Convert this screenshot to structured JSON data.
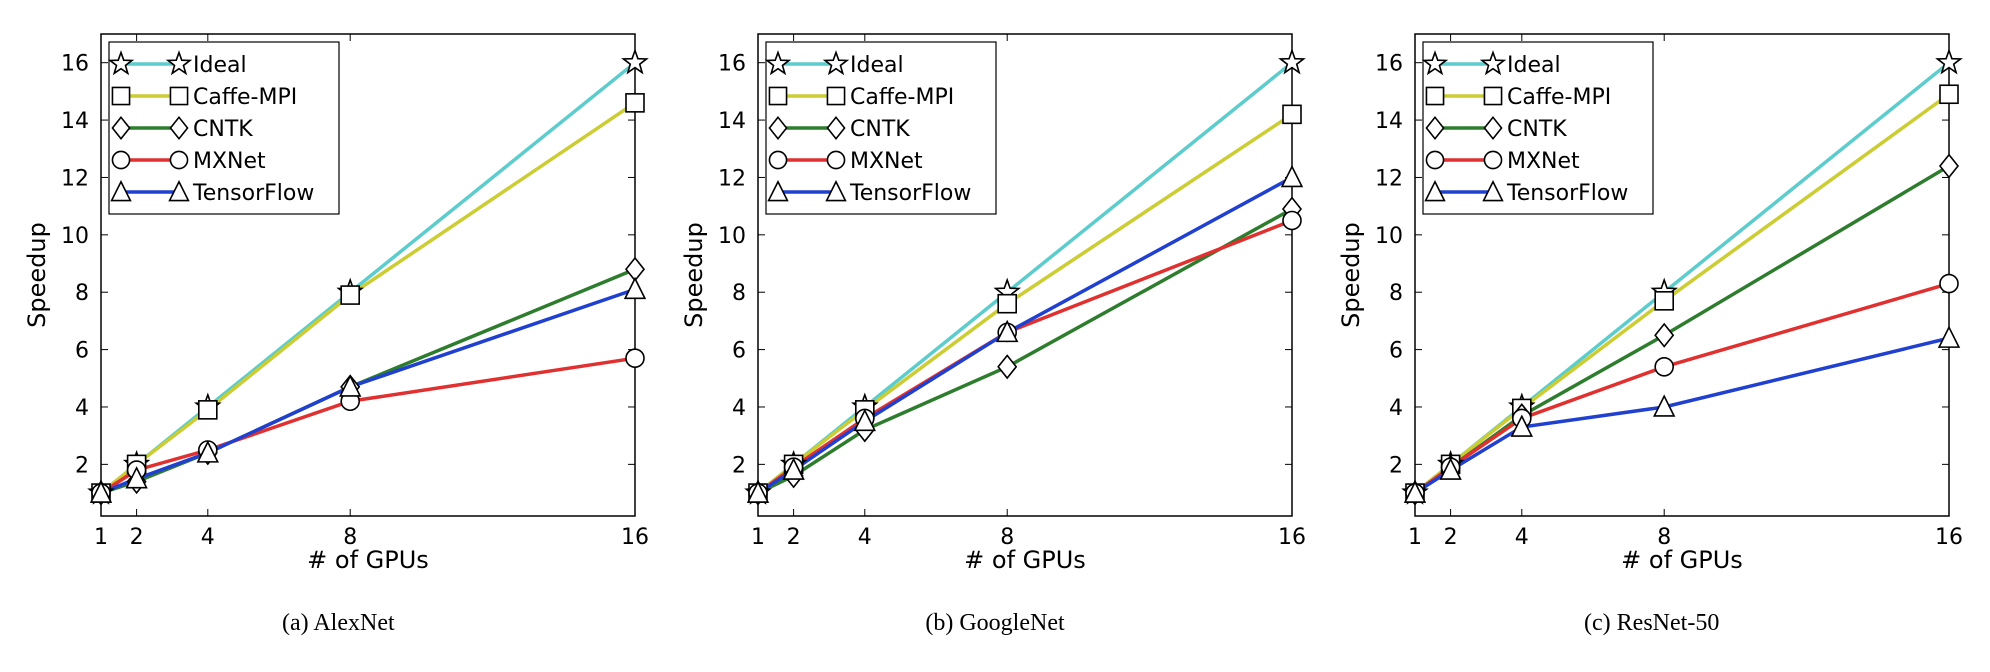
{
  "global": {
    "xlabel": "# of GPUs",
    "ylabel": "Speedup",
    "x_ticks": [
      1,
      2,
      4,
      8,
      16
    ],
    "y_ticks": [
      2,
      4,
      6,
      8,
      10,
      12,
      14,
      16
    ],
    "xlim": [
      1,
      16
    ],
    "ylim": [
      0.2,
      17
    ],
    "x_scale": "linear",
    "y_scale": "linear",
    "background_color": "#ffffff",
    "axis_color": "#000000",
    "line_width": 3.5,
    "marker_size": 9,
    "marker_edge_width": 1.6,
    "marker_face": "#ffffff",
    "tick_fontsize": 22,
    "label_fontsize": 24,
    "legend_fontsize": 22,
    "caption_fontsize": 24,
    "legend_pos": "upper-left"
  },
  "series_meta": [
    {
      "key": "Ideal",
      "label": "Ideal",
      "color": "#5ccccc",
      "marker": "star"
    },
    {
      "key": "Caffe-MPI",
      "label": "Caffe-MPI",
      "color": "#cccc33",
      "marker": "square"
    },
    {
      "key": "CNTK",
      "label": "CNTK",
      "color": "#2e7d2e",
      "marker": "diamond"
    },
    {
      "key": "MXNet",
      "label": "MXNet",
      "color": "#e03030",
      "marker": "circle"
    },
    {
      "key": "TensorFlow",
      "label": "TensorFlow",
      "color": "#2040d0",
      "marker": "triangle"
    }
  ],
  "panels": [
    {
      "id": "alexnet",
      "caption": "(a)  AlexNet",
      "x": [
        1,
        2,
        4,
        8,
        16
      ],
      "series": {
        "Ideal": [
          1,
          2,
          4,
          8,
          16
        ],
        "Caffe-MPI": [
          1,
          2.0,
          3.9,
          7.9,
          14.6
        ],
        "CNTK": [
          1,
          1.4,
          2.4,
          4.7,
          8.8
        ],
        "MXNet": [
          1,
          1.8,
          2.5,
          4.2,
          5.7
        ],
        "TensorFlow": [
          1,
          1.5,
          2.4,
          4.7,
          8.1
        ]
      }
    },
    {
      "id": "googlenet",
      "caption": "(b)  GoogleNet",
      "x": [
        1,
        2,
        4,
        8,
        16
      ],
      "series": {
        "Ideal": [
          1,
          2,
          4,
          8,
          16
        ],
        "Caffe-MPI": [
          1,
          2.0,
          3.9,
          7.6,
          14.2
        ],
        "CNTK": [
          1,
          1.6,
          3.2,
          5.4,
          10.9
        ],
        "MXNet": [
          1,
          1.9,
          3.6,
          6.6,
          10.5
        ],
        "TensorFlow": [
          1,
          1.8,
          3.5,
          6.6,
          12.0
        ]
      }
    },
    {
      "id": "resnet50",
      "caption": "(c)  ResNet-50",
      "x": [
        1,
        2,
        4,
        8,
        16
      ],
      "series": {
        "Ideal": [
          1,
          2,
          4,
          8,
          16
        ],
        "Caffe-MPI": [
          1,
          2.0,
          3.95,
          7.7,
          14.9
        ],
        "CNTK": [
          1,
          1.9,
          3.7,
          6.5,
          12.4
        ],
        "MXNet": [
          1,
          1.9,
          3.6,
          5.4,
          8.3
        ],
        "TensorFlow": [
          1,
          1.8,
          3.3,
          4.0,
          6.4
        ]
      }
    }
  ]
}
